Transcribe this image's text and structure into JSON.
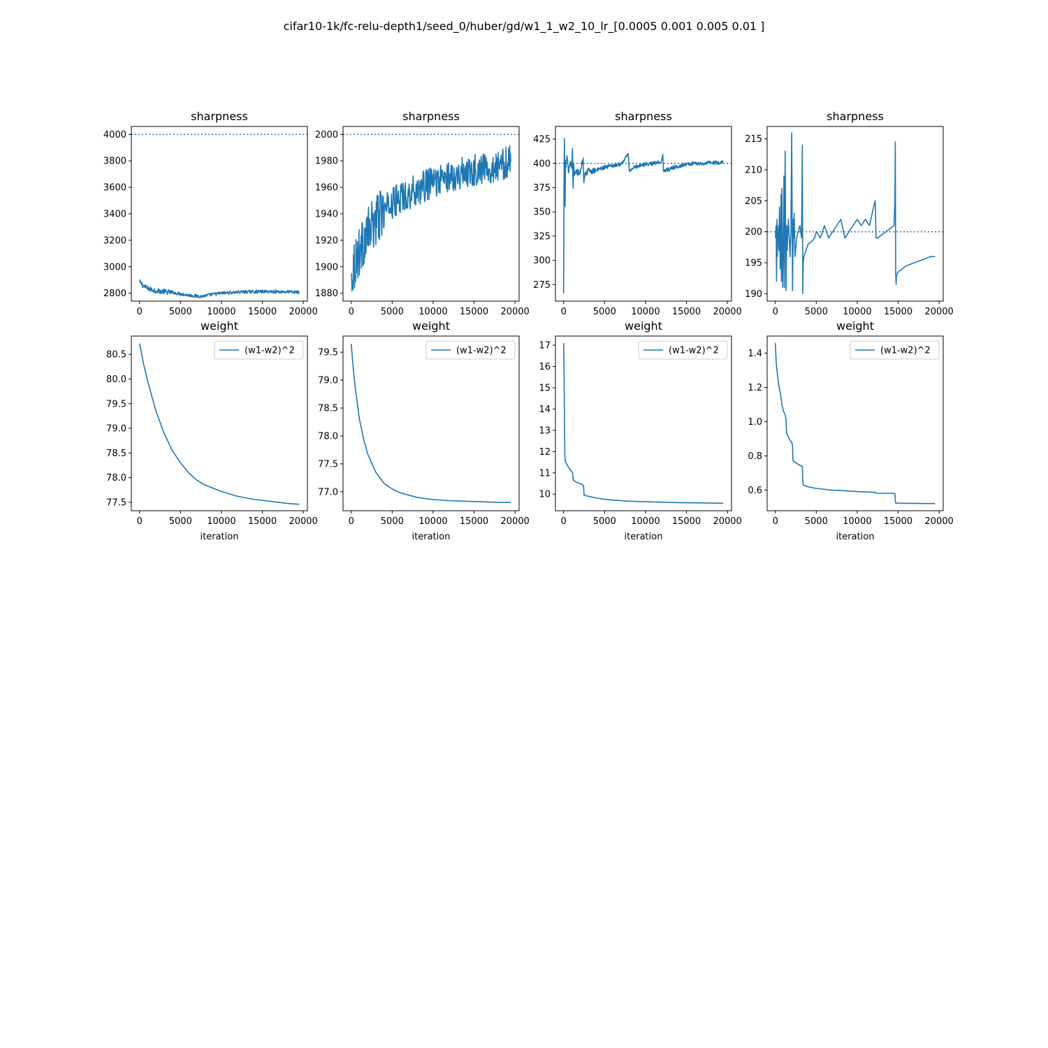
{
  "figure": {
    "suptitle": "cifar10-1k/fc-relu-depth1/seed_0/huber/gd/w1_1_w2_10_lr_[0.0005 0.001  0.005  0.01  ]"
  },
  "colors": {
    "series": "#1f77b4",
    "frame": "#000000"
  },
  "chart_data": [
    {
      "id": "sharp-1",
      "type": "line",
      "title": "sharpness",
      "xlabel": "",
      "ylabel": "",
      "xlim": [
        -1000,
        20500
      ],
      "ylim": [
        2740,
        4060
      ],
      "xticks": [
        0,
        5000,
        10000,
        15000,
        20000
      ],
      "xtick_labels": [
        "0",
        "5000",
        "10000",
        "15000",
        "20000"
      ],
      "yticks": [
        2800,
        3000,
        3200,
        3400,
        3600,
        3800,
        4000
      ],
      "ytick_labels": [
        "2800",
        "3000",
        "3200",
        "3400",
        "3600",
        "3800",
        "4000"
      ],
      "threshold": 4000,
      "series": [
        {
          "noise": 12,
          "x": [
            0,
            500,
            1000,
            2000,
            3000,
            4000,
            5000,
            6000,
            7000,
            7500,
            8000,
            9000,
            10000,
            12000,
            14000,
            16000,
            18000,
            19500
          ],
          "y": [
            2885,
            2855,
            2835,
            2818,
            2812,
            2805,
            2795,
            2785,
            2778,
            2776,
            2780,
            2792,
            2800,
            2808,
            2812,
            2812,
            2810,
            2808
          ]
        }
      ]
    },
    {
      "id": "sharp-2",
      "type": "line",
      "title": "sharpness",
      "xlabel": "",
      "ylabel": "",
      "xlim": [
        -1000,
        20500
      ],
      "ylim": [
        1874,
        2006
      ],
      "xticks": [
        0,
        5000,
        10000,
        15000,
        20000
      ],
      "xtick_labels": [
        "0",
        "5000",
        "10000",
        "15000",
        "20000"
      ],
      "yticks": [
        1880,
        1900,
        1920,
        1940,
        1960,
        1980,
        2000
      ],
      "ytick_labels": [
        "1880",
        "1900",
        "1920",
        "1940",
        "1960",
        "1980",
        "2000"
      ],
      "threshold": 2000,
      "series": [
        {
          "noise": 12,
          "x": [
            0,
            200,
            1000,
            2000,
            3000,
            4000,
            5000,
            6000,
            8000,
            10000,
            12000,
            14000,
            16000,
            18000,
            19500
          ],
          "y": [
            1890,
            1900,
            1912,
            1925,
            1935,
            1942,
            1948,
            1952,
            1958,
            1964,
            1968,
            1972,
            1974,
            1976,
            1980
          ]
        }
      ]
    },
    {
      "id": "sharp-3",
      "type": "line",
      "title": "sharpness",
      "xlabel": "",
      "ylabel": "",
      "xlim": [
        -1000,
        20500
      ],
      "ylim": [
        258,
        438
      ],
      "xticks": [
        0,
        5000,
        10000,
        15000,
        20000
      ],
      "xtick_labels": [
        "0",
        "5000",
        "10000",
        "15000",
        "20000"
      ],
      "yticks": [
        275,
        300,
        325,
        350,
        375,
        400,
        425
      ],
      "ytick_labels": [
        "275",
        "300",
        "325",
        "350",
        "375",
        "400",
        "425"
      ],
      "threshold": 400,
      "series": [
        {
          "noise": 2,
          "x": [
            0,
            50,
            100,
            130,
            160,
            200,
            260,
            400,
            600,
            800,
            1000,
            1100,
            1150,
            1200,
            1300,
            1500,
            2000,
            2400,
            2450,
            2500,
            2700,
            3000,
            4000,
            5000,
            6000,
            7000,
            7900,
            8000,
            8200,
            9000,
            10000,
            11000,
            12000,
            12100,
            12200,
            12500,
            14000,
            15000,
            16000,
            17000,
            18000,
            19000,
            19500
          ],
          "y": [
            265,
            395,
            431,
            400,
            308,
            403,
            398,
            405,
            392,
            404,
            395,
            421,
            355,
            400,
            388,
            391,
            390,
            405,
            372,
            385,
            390,
            392,
            393,
            396,
            398,
            399,
            410,
            392,
            394,
            397,
            399,
            400,
            402,
            410,
            391,
            393,
            397,
            399,
            400,
            400,
            401,
            400,
            401
          ]
        }
      ]
    },
    {
      "id": "sharp-4",
      "type": "line",
      "title": "sharpness",
      "xlabel": "",
      "ylabel": "",
      "xlim": [
        -1000,
        20500
      ],
      "ylim": [
        188.8,
        217.0
      ],
      "xticks": [
        0,
        5000,
        10000,
        15000,
        20000
      ],
      "xtick_labels": [
        "0",
        "5000",
        "10000",
        "15000",
        "20000"
      ],
      "yticks": [
        190,
        195,
        200,
        205,
        210,
        215
      ],
      "ytick_labels": [
        "190",
        "195",
        "200",
        "205",
        "210",
        "215"
      ],
      "threshold": 200,
      "series": [
        {
          "noise": 0,
          "x": [
            0,
            100,
            150,
            200,
            250,
            300,
            400,
            450,
            500,
            600,
            700,
            750,
            800,
            900,
            1000,
            1050,
            1100,
            1200,
            1300,
            1400,
            1450,
            1500,
            1600,
            1800,
            1900,
            2000,
            2100,
            2200,
            2250,
            2300,
            2400,
            2600,
            2800,
            3000,
            3200,
            3300,
            3350,
            3400,
            3500,
            4000,
            4500,
            4800,
            5000,
            5500,
            6000,
            6500,
            7000,
            7500,
            8000,
            8500,
            9000,
            9500,
            10000,
            10500,
            11000,
            11500,
            12000,
            12200,
            12300,
            12500,
            13000,
            14000,
            14500,
            14600,
            14650,
            14700,
            14750,
            14800,
            15000,
            16000,
            17000,
            18000,
            19000,
            19500
          ],
          "y": [
            199,
            201,
            192,
            202,
            196,
            199,
            201,
            197,
            204,
            194,
            206,
            192,
            207,
            191,
            200,
            209,
            191,
            213,
            190.5,
            201,
            197,
            199,
            202,
            196,
            200,
            216,
            190.5,
            202,
            199,
            203,
            196,
            199,
            200,
            201,
            199,
            214,
            190,
            195,
            196,
            198,
            198.5,
            199,
            200,
            199,
            201,
            199,
            200,
            201,
            202,
            199,
            200,
            201,
            202,
            201,
            202,
            201,
            204,
            205,
            199,
            199,
            199.5,
            200.5,
            201,
            205,
            214.5,
            193,
            191.5,
            193,
            193.5,
            194.5,
            195,
            195.5,
            196,
            196
          ]
        }
      ]
    },
    {
      "id": "weight-1",
      "type": "line",
      "title": "weight",
      "xlabel": "iteration",
      "ylabel": "",
      "xlim": [
        -1000,
        20500
      ],
      "ylim": [
        77.33,
        80.87
      ],
      "xticks": [
        0,
        5000,
        10000,
        15000,
        20000
      ],
      "xtick_labels": [
        "0",
        "5000",
        "10000",
        "15000",
        "20000"
      ],
      "yticks": [
        77.5,
        78.0,
        78.5,
        79.0,
        79.5,
        80.0,
        80.5
      ],
      "ytick_labels": [
        "77.5",
        "78.0",
        "78.5",
        "79.0",
        "79.5",
        "80.0",
        "80.5"
      ],
      "legend": {
        "label": "(w1-w2)^2",
        "loc": "upper right"
      },
      "series": [
        {
          "name": "(w1-w2)^2",
          "x": [
            0,
            500,
            1000,
            2000,
            3000,
            4000,
            5000,
            6000,
            7000,
            8000,
            10000,
            12000,
            14000,
            16000,
            18000,
            19500
          ],
          "y": [
            80.72,
            80.3,
            79.95,
            79.35,
            78.9,
            78.55,
            78.3,
            78.1,
            77.95,
            77.85,
            77.72,
            77.62,
            77.56,
            77.52,
            77.48,
            77.46
          ]
        }
      ]
    },
    {
      "id": "weight-2",
      "type": "line",
      "title": "weight",
      "xlabel": "iteration",
      "ylabel": "",
      "xlim": [
        -1000,
        20500
      ],
      "ylim": [
        76.66,
        79.79
      ],
      "xticks": [
        0,
        5000,
        10000,
        15000,
        20000
      ],
      "xtick_labels": [
        "0",
        "5000",
        "10000",
        "15000",
        "20000"
      ],
      "yticks": [
        77.0,
        77.5,
        78.0,
        78.5,
        79.0,
        79.5
      ],
      "ytick_labels": [
        "77.0",
        "77.5",
        "78.0",
        "78.5",
        "79.0",
        "79.5"
      ],
      "legend": {
        "label": "(w1-w2)^2",
        "loc": "upper right"
      },
      "series": [
        {
          "name": "(w1-w2)^2",
          "x": [
            0,
            250,
            500,
            1000,
            1500,
            2000,
            3000,
            4000,
            5000,
            6000,
            8000,
            10000,
            12000,
            14000,
            16000,
            18000,
            19500
          ],
          "y": [
            79.65,
            79.2,
            78.85,
            78.3,
            77.95,
            77.68,
            77.35,
            77.15,
            77.05,
            76.98,
            76.9,
            76.86,
            76.84,
            76.83,
            76.82,
            76.81,
            76.81
          ]
        }
      ]
    },
    {
      "id": "weight-3",
      "type": "line",
      "title": "weight",
      "xlabel": "iteration",
      "ylabel": "",
      "xlim": [
        -1000,
        20500
      ],
      "ylim": [
        9.22,
        17.43
      ],
      "xticks": [
        0,
        5000,
        10000,
        15000,
        20000
      ],
      "xtick_labels": [
        "0",
        "5000",
        "10000",
        "15000",
        "20000"
      ],
      "yticks": [
        10,
        11,
        12,
        13,
        14,
        15,
        16,
        17
      ],
      "ytick_labels": [
        "10",
        "11",
        "12",
        "13",
        "14",
        "15",
        "16",
        "17"
      ],
      "legend": {
        "label": "(w1-w2)^2",
        "loc": "upper right"
      },
      "series": [
        {
          "name": "(w1-w2)^2",
          "x": [
            0,
            50,
            100,
            150,
            200,
            400,
            600,
            800,
            1000,
            1100,
            1150,
            1200,
            1600,
            2000,
            2400,
            2450,
            2500,
            3000,
            4000,
            5000,
            6000,
            8000,
            10000,
            12000,
            14000,
            16000,
            18000,
            19500
          ],
          "y": [
            17.1,
            15.8,
            13.5,
            11.8,
            11.55,
            11.4,
            11.25,
            11.15,
            11.05,
            11.0,
            10.75,
            10.65,
            10.55,
            10.5,
            10.42,
            10.3,
            9.95,
            9.9,
            9.82,
            9.76,
            9.72,
            9.67,
            9.64,
            9.62,
            9.6,
            9.59,
            9.58,
            9.57
          ]
        }
      ]
    },
    {
      "id": "weight-4",
      "type": "line",
      "title": "weight",
      "xlabel": "iteration",
      "ylabel": "",
      "xlim": [
        -1000,
        20500
      ],
      "ylim": [
        0.48,
        1.5
      ],
      "xticks": [
        0,
        5000,
        10000,
        15000,
        20000
      ],
      "xtick_labels": [
        "0",
        "5000",
        "10000",
        "15000",
        "20000"
      ],
      "yticks": [
        0.6,
        0.8,
        1.0,
        1.2,
        1.4
      ],
      "ytick_labels": [
        "0.6",
        "0.8",
        "1.0",
        "1.2",
        "1.4"
      ],
      "legend": {
        "label": "(w1-w2)^2",
        "loc": "upper right"
      },
      "series": [
        {
          "name": "(w1-w2)^2",
          "x": [
            0,
            100,
            200,
            300,
            400,
            500,
            600,
            700,
            750,
            800,
            900,
            1000,
            1200,
            1300,
            1350,
            1400,
            1600,
            1800,
            2000,
            2100,
            2150,
            2200,
            2500,
            3000,
            3300,
            3350,
            3400,
            4000,
            5000,
            6000,
            7000,
            8000,
            9000,
            10000,
            11000,
            12000,
            12200,
            12250,
            13000,
            14000,
            14600,
            14650,
            14700,
            15000,
            16000,
            17000,
            18000,
            19000,
            19500
          ],
          "y": [
            1.46,
            1.35,
            1.3,
            1.26,
            1.22,
            1.19,
            1.17,
            1.14,
            1.12,
            1.1,
            1.08,
            1.06,
            1.04,
            1.02,
            0.95,
            0.93,
            0.91,
            0.89,
            0.88,
            0.86,
            0.78,
            0.77,
            0.76,
            0.745,
            0.74,
            0.65,
            0.63,
            0.62,
            0.61,
            0.605,
            0.6,
            0.598,
            0.595,
            0.592,
            0.59,
            0.588,
            0.587,
            0.583,
            0.582,
            0.582,
            0.581,
            0.54,
            0.525,
            0.524,
            0.523,
            0.523,
            0.522,
            0.522,
            0.522
          ]
        }
      ]
    }
  ]
}
